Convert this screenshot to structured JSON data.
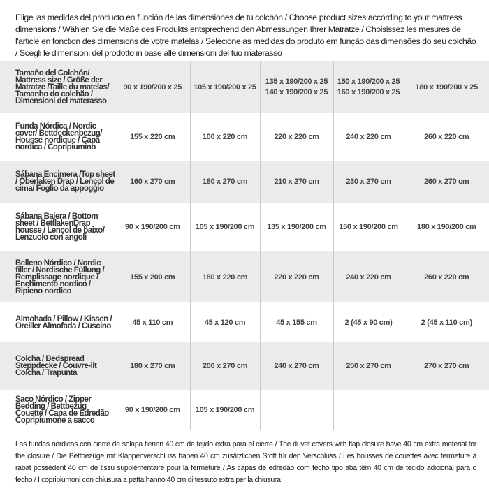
{
  "intro": "Elige las medidas del producto en función de las dimensiones de tu colchón / Choose product sizes according to your mattress dimensions / Wählen Sie die Maße des Produkts entsprechend den Abmessungen Ihrer Matratze / Choisissez les mesures de l'article en fonction des dimensions de votre matelas / Selecione as medidas do produto em função das dimensões do seu colchão / Scegli le dimensioni del prodotto in base alle dimensioni del tuo materasso",
  "table": {
    "header": {
      "label": "Tamaño del Colchón/ Mattress size / Größe der Matratze /Taille du matelas/ Tamanho do colchão / Dimensioni del materasso",
      "sizes": [
        [
          "90 x 190/200 x 25"
        ],
        [
          "105 x 190/200 x 25"
        ],
        [
          "135 x 190/200 x 25",
          "140 x 190/200 x 25"
        ],
        [
          "150 x 190/200 x 25",
          "160 x 190/200 x 25"
        ],
        [
          "180 x 190/200 x 25"
        ]
      ]
    },
    "rows": [
      {
        "label": "Funda Nórdica /  Nordic cover/ Bettdeckenbezug/ Housse nordique  / Capa nordica / Copripiumino",
        "values": [
          "155 x 220 cm",
          "100 x 220 cm",
          "220 x 220 cm",
          "240 x 220 cm",
          "260 x 220 cm"
        ]
      },
      {
        "label": "Sábana Encimera /Top sheet / Oberlaken Drap / Lençol de cima/ Foglio da appoggio",
        "values": [
          "160 x 270 cm",
          "180 x 270 cm",
          "210 x 270 cm",
          "230 x 270 cm",
          "260 x 270 cm"
        ]
      },
      {
        "label": "Sábana Bajera / Bottom sheet / BettlakenDrap housse / Lençol de baixo/ Lenzuolo con angoli",
        "values": [
          "90 x 190/200 cm",
          "105 x 190/200 cm",
          "135 x 190/200 cm",
          "150 x 190/200 cm",
          "180 x 190/200 cm"
        ]
      },
      {
        "label": "Belleno Nórdico / Nordic filler / Nordische Füllung / Remplissage nordique / Enchimento nordico / Ripieno nordico",
        "values": [
          "155 x 200 cm",
          "180 x 220 cm",
          "220 x 220 cm",
          "240 x 220 cm",
          "260 x 220 cm"
        ]
      },
      {
        "label": "Almohada  / Pillow / Kissen / Oreiller Almofada / Cuscino",
        "values": [
          "45 x 110 cm",
          "45 x 120 cm",
          "45 x 155 cm",
          "2 (45 x 90 cm)",
          "2 (45 x 110 cm)"
        ]
      },
      {
        "label": "Colcha / Bedspread Steppdecke / Couvre-lit Colcha / Trapunta",
        "values": [
          "180 x 270 cm",
          "200 x 270 cm",
          "240 x 270 cm",
          "250 x 270 cm",
          "270 x 270 cm"
        ]
      },
      {
        "label": "Saco Nórdico / Zipper Bedding / Bettbezug Couette  / Capa de Edredão Copripiumone a sacco",
        "values": [
          "90 x 190/200 cm",
          "105 x 190/200 cm",
          "",
          "",
          ""
        ]
      }
    ]
  },
  "footnote": "Las fundas nórdicas con cierre de solapa tienen 40 cm de tejido extra para el cierre  / The duvet covers with flap closure have 40 cm extra material for the closure / Die Bettbezüge mit Klappenverschluss haben 40 cm zusätzlichen Stoff für den Verschluss / Les housses de couettes avec fermeture à rabat possèdent 40 cm de tissu supplémentaire pour la fermeture / As capas de edredão com fecho tipo aba têm 40 cm de tecido adicional para o fecho / I copripiumoni con chiusura a patta hanno 40 cm di tessuto extra per la chiusura"
}
